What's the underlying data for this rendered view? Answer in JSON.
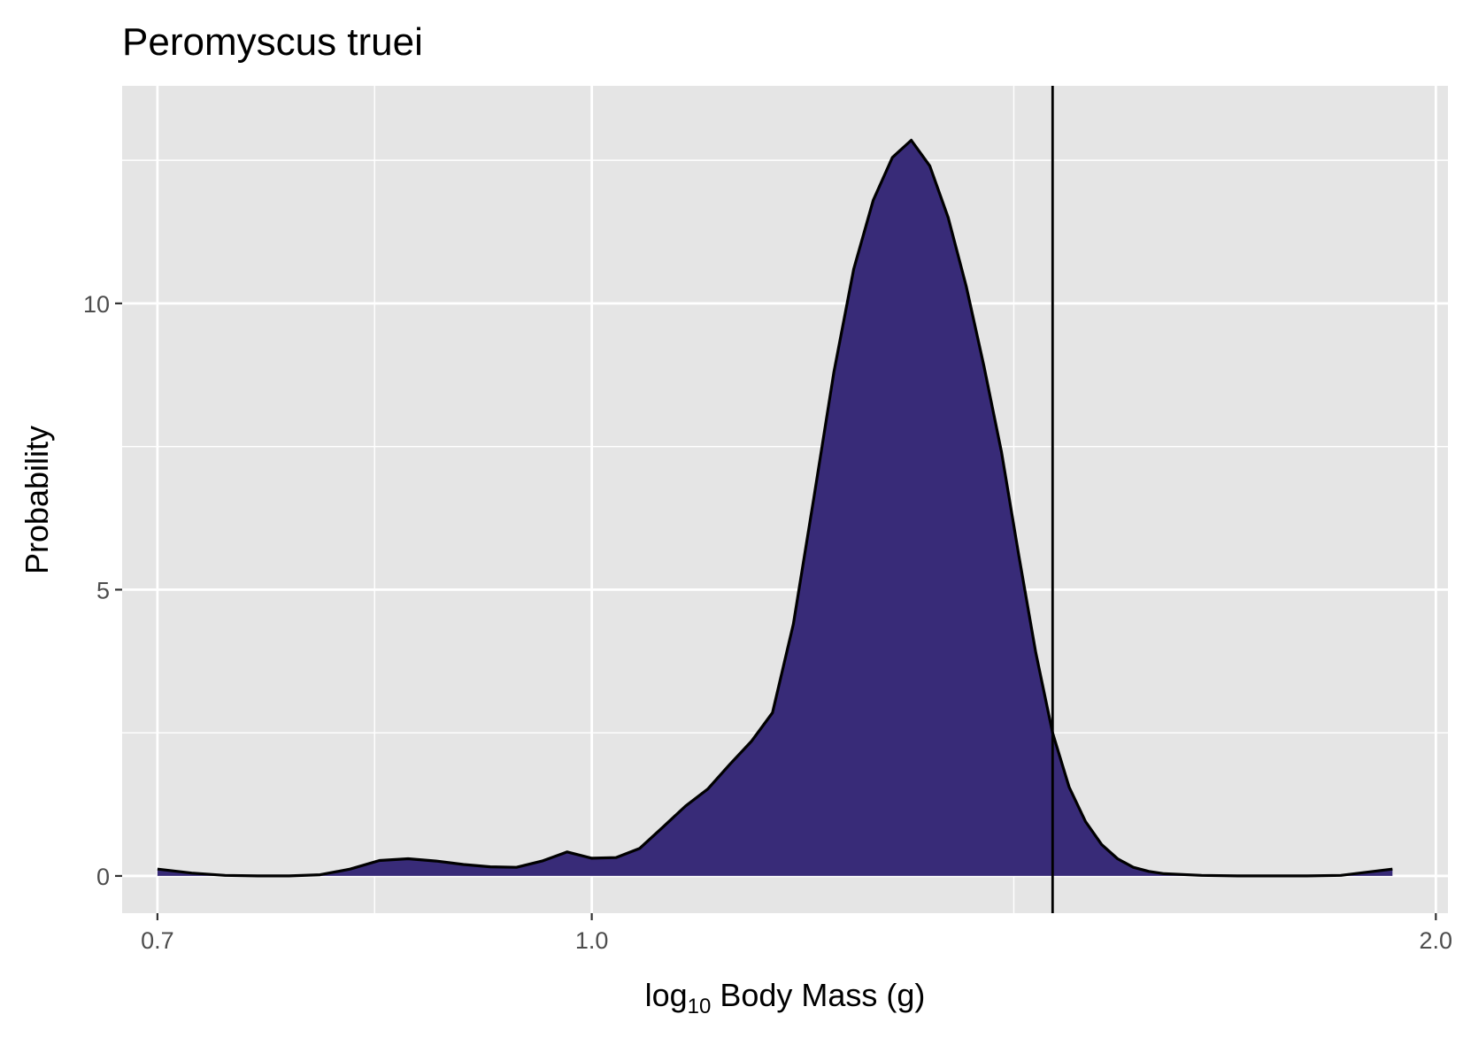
{
  "chart_data": {
    "type": "area",
    "title": "Peromyscus truei",
    "xlabel": {
      "prefix": "log",
      "subscript": "10",
      "suffix": " Body Mass (g)"
    },
    "ylabel": "Probability",
    "x_scale": "log10",
    "x_ticks": [
      {
        "value": 0.7,
        "label": "0.7"
      },
      {
        "value": 1.0,
        "label": "1.0"
      },
      {
        "value": 2.0,
        "label": "2.0"
      }
    ],
    "y_ticks": [
      {
        "value": 0,
        "label": "0"
      },
      {
        "value": 5,
        "label": "5"
      },
      {
        "value": 10,
        "label": "10"
      }
    ],
    "xlim": [
      0.68,
      2.02
    ],
    "ylim": [
      -0.65,
      13.8
    ],
    "grid": true,
    "colors": {
      "fill": "#382b78",
      "line": "#000000",
      "panel": "#e5e5e5",
      "grid": "#ffffff"
    },
    "reference_line_x": 1.46,
    "density": {
      "x": [
        0.7,
        0.72,
        0.74,
        0.76,
        0.78,
        0.8,
        0.82,
        0.84,
        0.86,
        0.88,
        0.9,
        0.92,
        0.94,
        0.96,
        0.98,
        1.0,
        1.02,
        1.04,
        1.06,
        1.08,
        1.1,
        1.12,
        1.14,
        1.16,
        1.18,
        1.2,
        1.22,
        1.24,
        1.26,
        1.28,
        1.3,
        1.32,
        1.34,
        1.36,
        1.38,
        1.4,
        1.42,
        1.44,
        1.46,
        1.48,
        1.5,
        1.52,
        1.54,
        1.56,
        1.58,
        1.6,
        1.65,
        1.7,
        1.75,
        1.8,
        1.85,
        1.9,
        1.93
      ],
      "y": [
        0.12,
        0.05,
        0.01,
        0.0,
        0.0,
        0.02,
        0.12,
        0.27,
        0.3,
        0.26,
        0.2,
        0.16,
        0.15,
        0.26,
        0.42,
        0.31,
        0.32,
        0.48,
        0.85,
        1.22,
        1.52,
        1.95,
        2.35,
        2.85,
        4.4,
        6.6,
        8.8,
        10.6,
        11.8,
        12.55,
        12.85,
        12.4,
        11.5,
        10.3,
        8.9,
        7.4,
        5.6,
        3.9,
        2.5,
        1.55,
        0.95,
        0.55,
        0.3,
        0.15,
        0.08,
        0.04,
        0.01,
        0.0,
        0.0,
        0.0,
        0.01,
        0.08,
        0.12
      ]
    }
  }
}
